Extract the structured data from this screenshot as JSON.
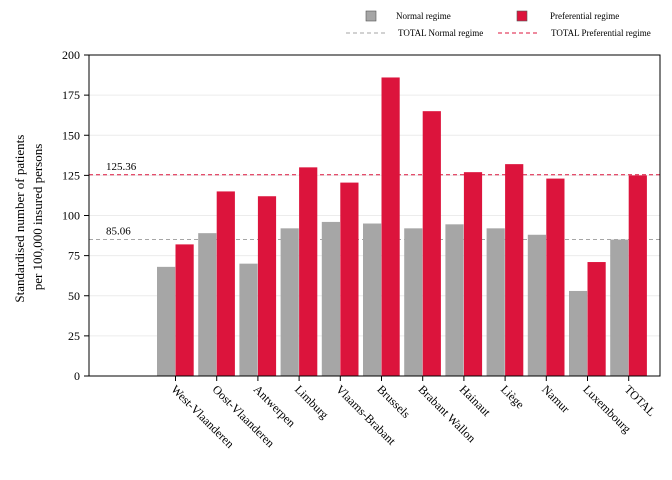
{
  "chart_data": {
    "type": "bar",
    "categories": [
      "West-Vlaanderen",
      "Oost-Vlaanderen",
      "Antwerpen",
      "Limburg",
      "Vlaams-Brabant",
      "Brussels",
      "Brabant Wallon",
      "Hainaut",
      "Liège",
      "Namur",
      "Luxembourg",
      "TOTAL"
    ],
    "series": [
      {
        "name": "Normal regime",
        "color": "#a6a6a6",
        "values": [
          68,
          89,
          70,
          92,
          96,
          95,
          92,
          94.5,
          92,
          88,
          53,
          85
        ]
      },
      {
        "name": "Preferential regime",
        "color": "#dc143c",
        "values": [
          82,
          115,
          112,
          130,
          120.5,
          186,
          165,
          127,
          132,
          123,
          71,
          125
        ]
      }
    ],
    "reference_lines": [
      {
        "name": "TOTAL Normal regime",
        "value": 85.06,
        "label": "85.06",
        "color": "#a6a6a6"
      },
      {
        "name": "TOTAL Preferential regime",
        "value": 125.36,
        "label": "125.36",
        "color": "#dc143c"
      }
    ],
    "ylabel_line1": "Standardised number of patients",
    "ylabel_line2": "per 100,000 insured persons",
    "ylim": [
      0,
      200
    ],
    "yticks": [
      "0",
      "25",
      "50",
      "75",
      "100",
      "125",
      "150",
      "175",
      "200"
    ],
    "grid": true,
    "legend_position": "top-right"
  }
}
